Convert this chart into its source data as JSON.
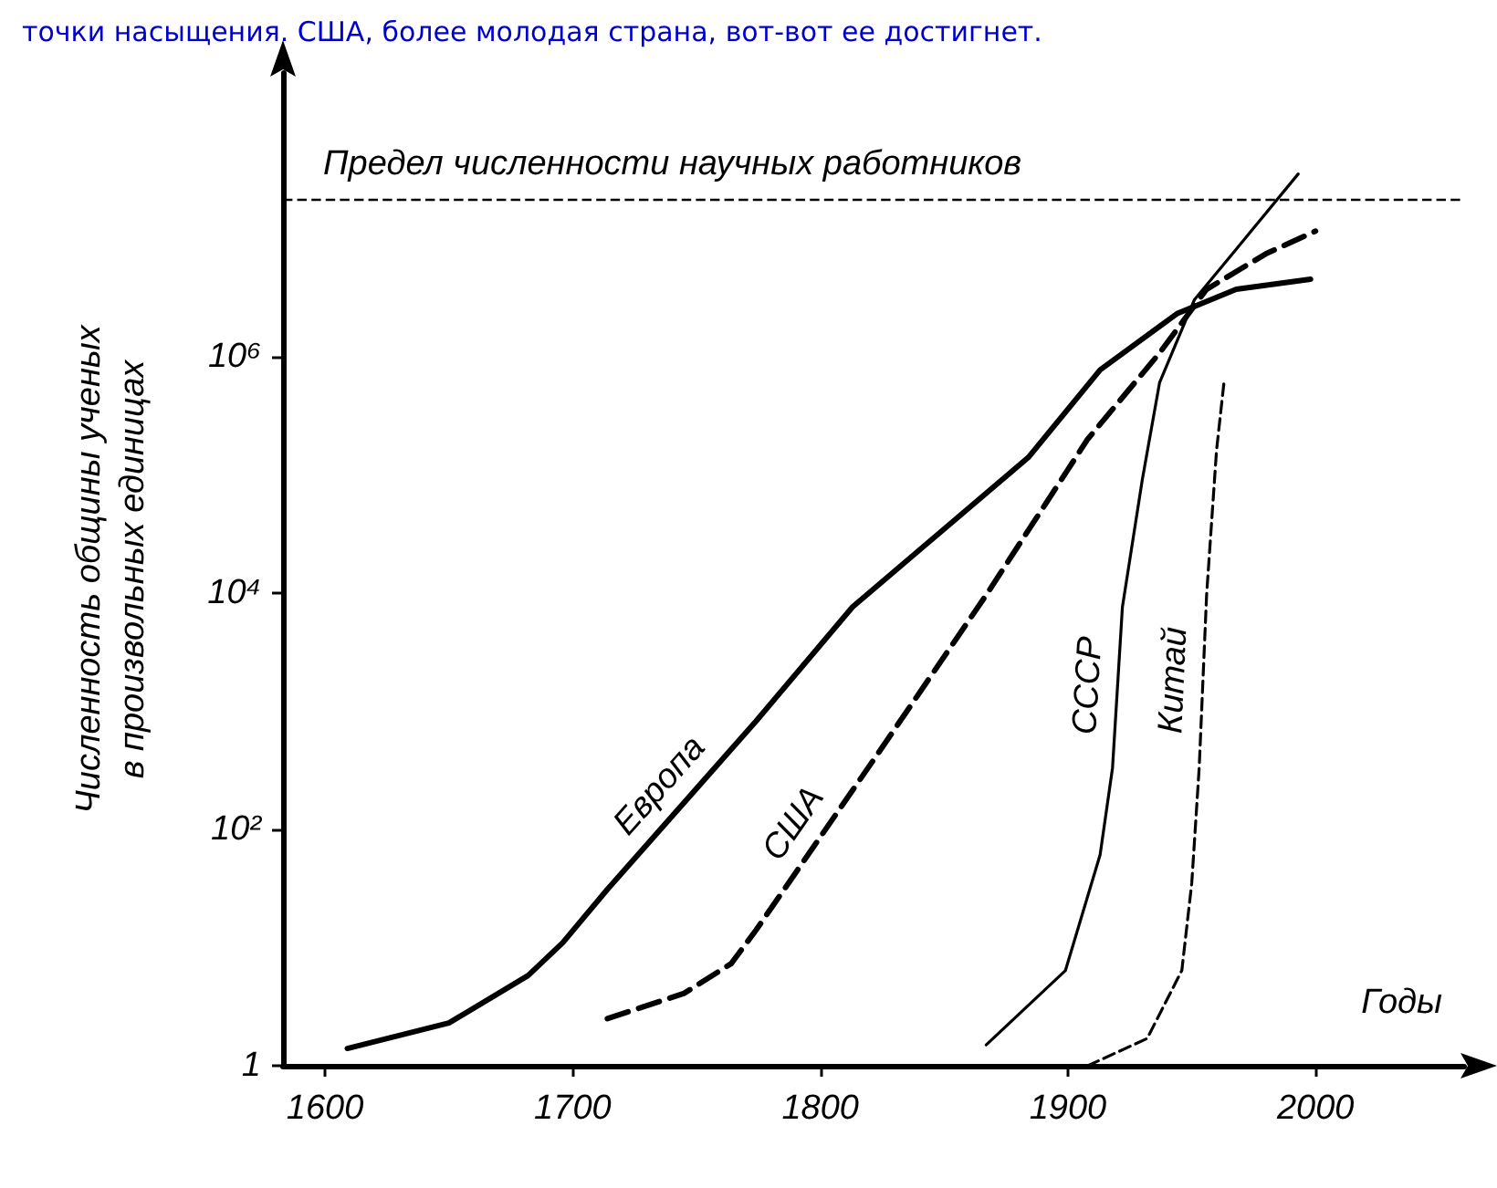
{
  "chart_data": {
    "type": "line",
    "annotations": [
      "точки насыщения. США, более молодая страна, вот-вот ее достигнет."
    ],
    "xlabel": "Годы",
    "ylabel": "Численность общины ученых\nв произвольных единицах",
    "log": "y",
    "xlim": [
      1583,
      2060
    ],
    "xticks": [
      1600,
      1700,
      1800,
      1900,
      2000
    ],
    "ylim": [
      1,
      250000000
    ],
    "yticks": [
      {
        "value": 1,
        "label": "1"
      },
      {
        "value": 100,
        "label": "10²"
      },
      {
        "value": 10000,
        "label": "10⁴"
      },
      {
        "value": 1000000,
        "label": "10⁶"
      }
    ],
    "grid": false,
    "legend": false,
    "marker": "none",
    "ref_lines": [
      {
        "axis": "y",
        "value": 21000000,
        "label": "Предел численности научных работников",
        "line_style": "dashed",
        "color": "#000000"
      }
    ],
    "series": [
      {
        "name": "Европа",
        "color": "#000000",
        "line_style": "solid",
        "x": [
          1609,
          1650,
          1682,
          1696,
          1714,
          1774,
          1813,
          1884,
          1913,
          1944,
          1968,
          1998
        ],
        "values": [
          1.4,
          2.3,
          5.8,
          11,
          31,
          820,
          7600,
          140000,
          770000,
          2300000,
          3700000,
          4500000
        ]
      },
      {
        "name": "США",
        "color": "#000000",
        "line_style": "dashed",
        "x": [
          1714,
          1745,
          1764,
          1774,
          1824,
          1867,
          1908,
          1937,
          1956,
          1980,
          2000
        ],
        "values": [
          2.5,
          4.1,
          7.3,
          14,
          460,
          9600,
          200000,
          1070000,
          3700000,
          7400000,
          11500000
        ]
      },
      {
        "name": "СССР",
        "color": "#000000",
        "line_style": "solid",
        "x": [
          1867,
          1899,
          1913,
          1918,
          1922,
          1930,
          1937,
          1951,
          1968,
          1993
        ],
        "values": [
          1.5,
          6.4,
          61,
          330,
          7600,
          90000,
          600000,
          3000000,
          8100000,
          35000000
        ]
      },
      {
        "name": "Китай",
        "color": "#000000",
        "line_style": "dashed",
        "x": [
          1908,
          1932,
          1946,
          1950,
          1953,
          1956,
          1960,
          1963
        ],
        "values": [
          1,
          1.7,
          6.4,
          35,
          330,
          9600,
          160000,
          600000
        ]
      }
    ]
  }
}
